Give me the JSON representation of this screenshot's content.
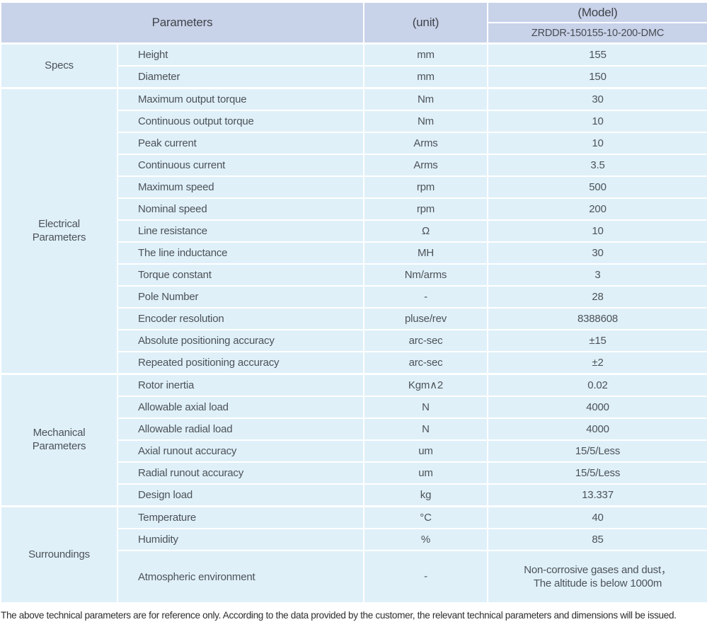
{
  "header": {
    "parameters_label": "Parameters",
    "unit_label": "(unit)",
    "model_label": "(Model)",
    "model_value": "ZRDDR-150155-10-200-DMC"
  },
  "groups": [
    {
      "label": "Specs",
      "rows": [
        {
          "param": "Height",
          "unit": "mm",
          "value": "155"
        },
        {
          "param": "Diameter",
          "unit": "mm",
          "value": "150"
        }
      ]
    },
    {
      "label": "Electrical Parameters",
      "rows": [
        {
          "param": "Maximum output torque",
          "unit": "Nm",
          "value": "30"
        },
        {
          "param": "Continuous output torque",
          "unit": "Nm",
          "value": "10"
        },
        {
          "param": "Peak current",
          "unit": "Arms",
          "value": "10"
        },
        {
          "param": "Continuous current",
          "unit": "Arms",
          "value": "3.5"
        },
        {
          "param": "Maximum speed",
          "unit": "rpm",
          "value": "500"
        },
        {
          "param": "Nominal speed",
          "unit": "rpm",
          "value": "200"
        },
        {
          "param": "Line resistance",
          "unit": "Ω",
          "value": "10"
        },
        {
          "param": "The line inductance",
          "unit": "MH",
          "value": "30"
        },
        {
          "param": "Torque constant",
          "unit": "Nm/arms",
          "value": "3"
        },
        {
          "param": "Pole Number",
          "unit": "-",
          "value": "28"
        },
        {
          "param": "Encoder resolution",
          "unit": "pluse/rev",
          "value": "8388608"
        },
        {
          "param": "Absolute positioning accuracy",
          "unit": "arc-sec",
          "value": "±15"
        },
        {
          "param": "Repeated positioning accuracy",
          "unit": "arc-sec",
          "value": "±2"
        }
      ]
    },
    {
      "label": "Mechanical Parameters",
      "rows": [
        {
          "param": "Rotor inertia",
          "unit": "Kgm∧2",
          "value": "0.02"
        },
        {
          "param": "Allowable axial load",
          "unit": "N",
          "value": "4000"
        },
        {
          "param": "Allowable radial load",
          "unit": "N",
          "value": "4000"
        },
        {
          "param": "Axial runout accuracy",
          "unit": "um",
          "value": "15/5/Less"
        },
        {
          "param": "Radial runout accuracy",
          "unit": "um",
          "value": "15/5/Less"
        },
        {
          "param": "Design load",
          "unit": "kg",
          "value": "13.337"
        }
      ]
    },
    {
      "label": "Surroundings",
      "rows": [
        {
          "param": "Temperature",
          "unit": "°C",
          "value": "40"
        },
        {
          "param": "Humidity",
          "unit": "%",
          "value": "85"
        },
        {
          "param": "Atmospheric environment",
          "unit": "-",
          "value": "Non-corrosive gases and dust，\nThe altitude is below 1000m",
          "tall": true
        }
      ]
    }
  ],
  "footer": {
    "note": "The above technical parameters are for reference only. According to the data provided by the customer, the relevant technical parameters and dimensions will be issued."
  },
  "colors": {
    "header_bg": "#c8d2e9",
    "row_bg": "#dff0f9",
    "border": "#ffffff",
    "body_text": "#4d5257",
    "header_text": "#3f4449"
  }
}
